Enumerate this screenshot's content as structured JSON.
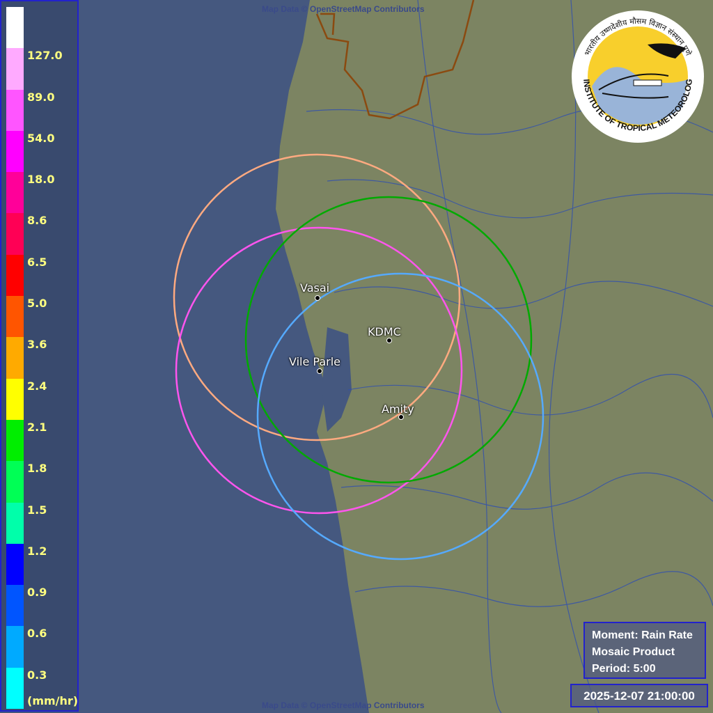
{
  "legend": {
    "colors": [
      "#ffffff",
      "#ffaaff",
      "#ff55ff",
      "#ff00ff",
      "#ff0099",
      "#ff0055",
      "#ff0000",
      "#ff5500",
      "#ffaa00",
      "#ffff00",
      "#00ee00",
      "#00ff55",
      "#00ffaa",
      "#0000ff",
      "#0055ff",
      "#00aaff",
      "#00ffff"
    ],
    "labels": [
      "127.0",
      "89.0",
      "54.0",
      "18.0",
      "8.6",
      "6.5",
      "5.0",
      "3.6",
      "2.4",
      "2.1",
      "1.8",
      "1.5",
      "1.2",
      "0.9",
      "0.6",
      "0.3"
    ],
    "unit": "(mm/hr)"
  },
  "attribution": {
    "top": "Map Data © OpenStreetMap Contributors",
    "bottom": "Map Data © OpenStreetMap Contributors"
  },
  "radars": [
    {
      "name": "Vasai",
      "ring_color": "#ffaa80"
    },
    {
      "name": "Vile Parle",
      "ring_color": "#ff55ee"
    },
    {
      "name": "KDMC",
      "ring_color": "#00aa00"
    },
    {
      "name": "Amity",
      "ring_color": "#55aaff"
    }
  ],
  "info": {
    "moment": "Moment: Rain Rate",
    "product": "Mosaic Product",
    "period": "Period: 5:00"
  },
  "timestamp": "2025-12-07 21:00:00",
  "logo": {
    "text_en": "INDIAN INSTITUTE OF TROPICAL METEOROLOGY PUNE",
    "text_hi": "भारतीय उष्णदेशीय मौसम विज्ञान संस्थान पुणे"
  },
  "colors": {
    "sea": "#45587f",
    "land": "#7c8462",
    "rivers": "#2f4fb0",
    "border": "#8b4a10"
  }
}
